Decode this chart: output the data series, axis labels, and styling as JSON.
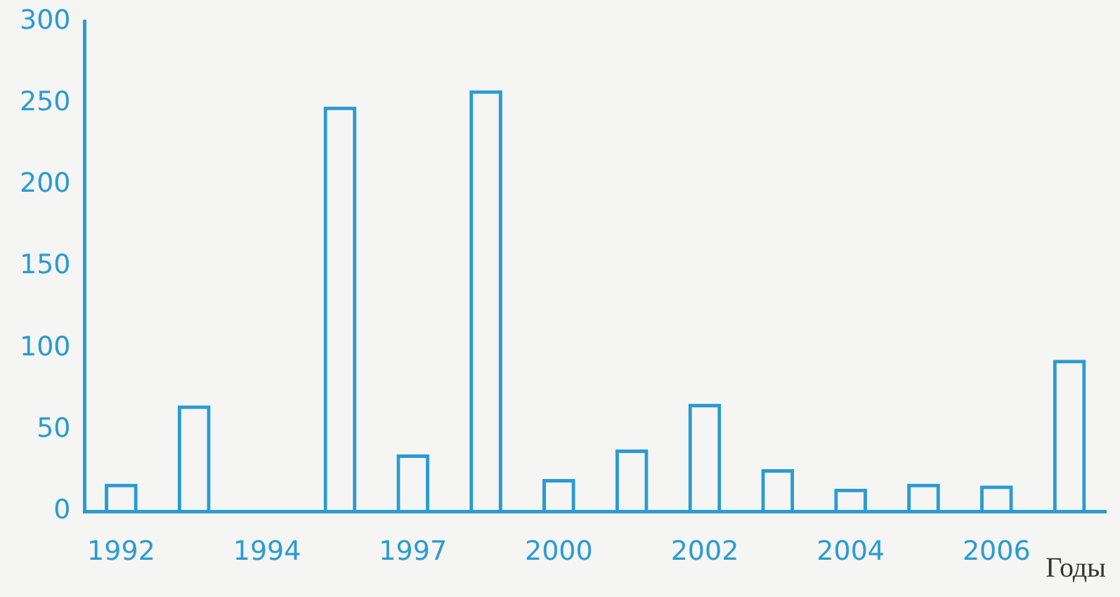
{
  "chart_data": {
    "type": "bar",
    "xlabel": "Годы",
    "categories": [
      "1992",
      null,
      "1994",
      null,
      "1997",
      null,
      "2000",
      null,
      "2002",
      null,
      "2004",
      null,
      "2006",
      null
    ],
    "values": [
      17,
      65,
      null,
      248,
      35,
      258,
      20,
      38,
      66,
      26,
      14,
      17,
      16,
      93
    ],
    "color": "#2b9bd3",
    "ylim": [
      0,
      300
    ],
    "yticks": [
      0,
      50,
      100,
      150,
      200,
      250,
      300
    ],
    "grid": false,
    "legend": false
  }
}
